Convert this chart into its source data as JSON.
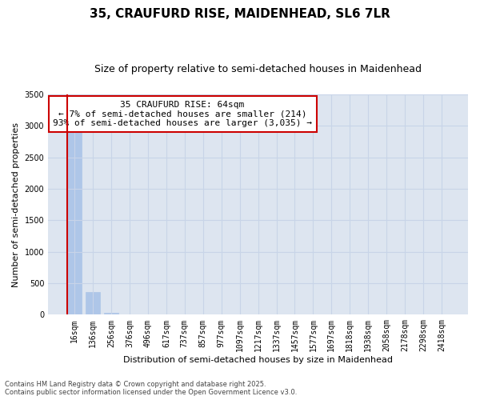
{
  "title_line1": "35, CRAUFURD RISE, MAIDENHEAD, SL6 7LR",
  "title_line2": "Size of property relative to semi-detached houses in Maidenhead",
  "xlabel": "Distribution of semi-detached houses by size in Maidenhead",
  "ylabel": "Number of semi-detached properties",
  "annotation_title": "35 CRAUFURD RISE: 64sqm",
  "annotation_line2": "← 7% of semi-detached houses are smaller (214)",
  "annotation_line3": "93% of semi-detached houses are larger (3,035) →",
  "footer_line1": "Contains HM Land Registry data © Crown copyright and database right 2025.",
  "footer_line2": "Contains public sector information licensed under the Open Government Licence v3.0.",
  "categories": [
    "16sqm",
    "136sqm",
    "256sqm",
    "376sqm",
    "496sqm",
    "617sqm",
    "737sqm",
    "857sqm",
    "977sqm",
    "1097sqm",
    "1217sqm",
    "1337sqm",
    "1457sqm",
    "1577sqm",
    "1697sqm",
    "1818sqm",
    "1938sqm",
    "2058sqm",
    "2178sqm",
    "2298sqm",
    "2418sqm"
  ],
  "values": [
    2900,
    360,
    25,
    5,
    2,
    1,
    0,
    0,
    0,
    0,
    0,
    0,
    0,
    0,
    0,
    0,
    0,
    0,
    0,
    0,
    0
  ],
  "bar_color": "#aec6e8",
  "bar_edge_color": "#aec6e8",
  "grid_color": "#c8d4e8",
  "background_color": "#dde5f0",
  "annotation_box_color": "#ffffff",
  "annotation_box_edge": "#cc0000",
  "vline_color": "#cc0000",
  "vline_x": -0.4,
  "ylim": [
    0,
    3500
  ],
  "yticks": [
    0,
    500,
    1000,
    1500,
    2000,
    2500,
    3000,
    3500
  ],
  "title_fontsize": 11,
  "subtitle_fontsize": 9,
  "ylabel_fontsize": 8,
  "xlabel_fontsize": 8,
  "tick_fontsize": 7,
  "annot_fontsize": 8,
  "footer_fontsize": 6
}
